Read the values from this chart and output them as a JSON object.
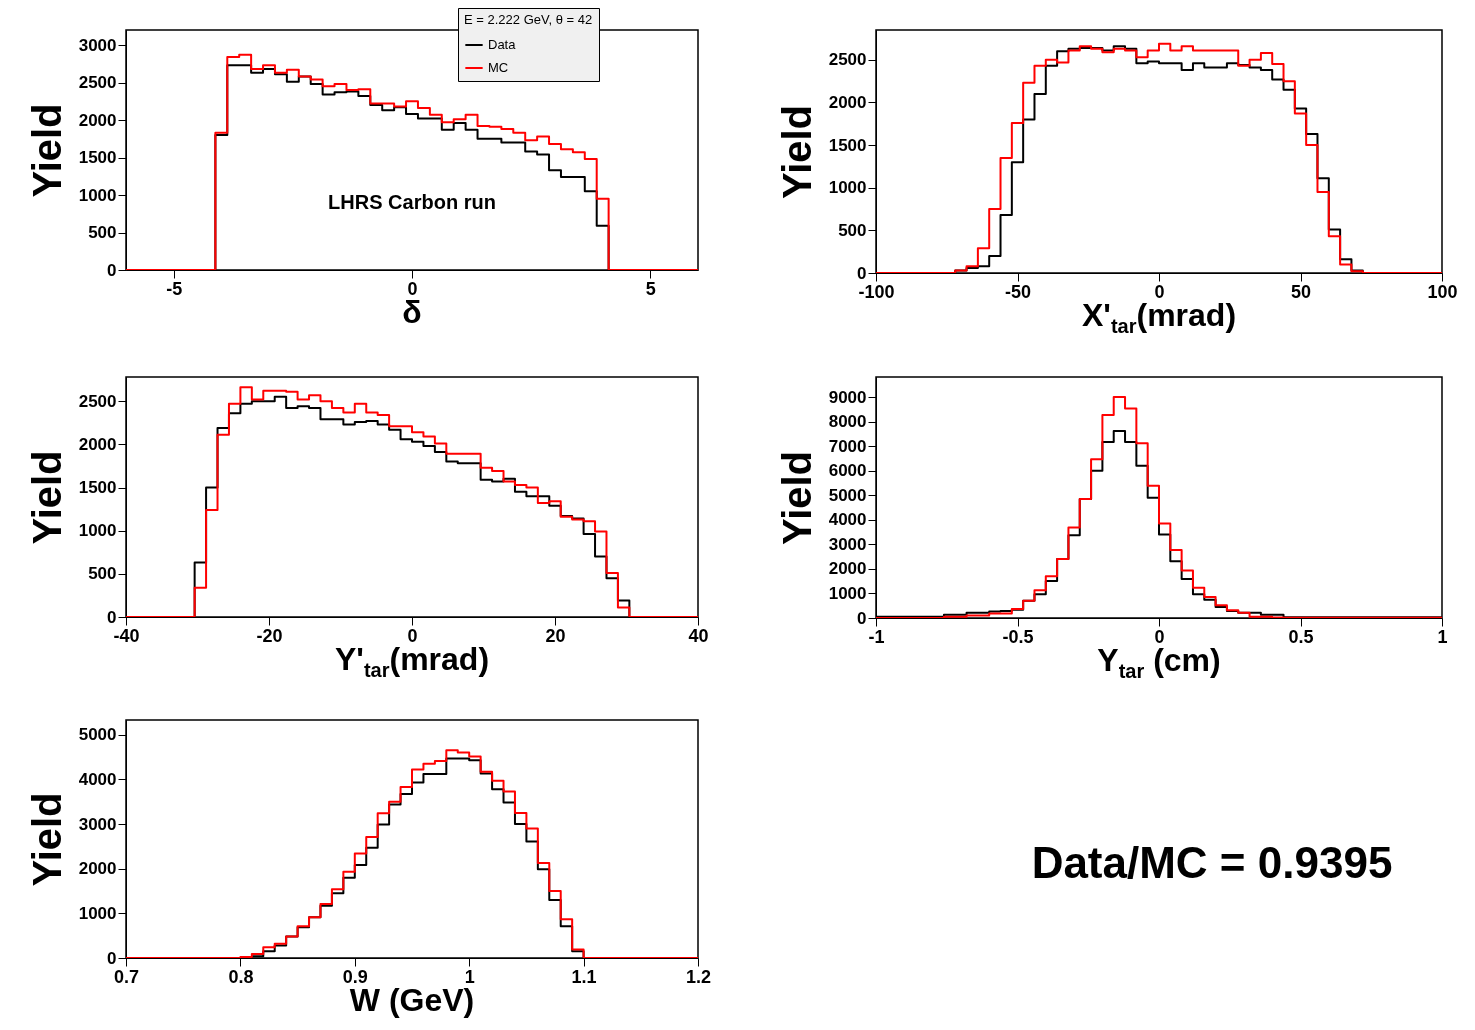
{
  "chart_data": [
    {
      "type": "histogram",
      "xlabel": "δ",
      "ylabel": "Yield",
      "legend": "top right",
      "legend_title": "E = 2.222 GeV, θ = 42",
      "annotations": [
        "LHRS Carbon run"
      ],
      "xlim": [
        -6,
        6
      ],
      "xticks": [
        -5,
        0,
        5
      ],
      "ylim": [
        0,
        3200
      ],
      "yticks": [
        0,
        500,
        1000,
        1500,
        2000,
        2500,
        3000
      ],
      "bins": [
        -6,
        -4.125,
        -3.875,
        -3.625,
        -3.375,
        -3.125,
        -2.875,
        -2.625,
        -2.375,
        -2.125,
        -1.875,
        -1.625,
        -1.375,
        -1.125,
        -0.875,
        -0.625,
        -0.375,
        -0.125,
        0.125,
        0.375,
        0.625,
        0.875,
        1.125,
        1.375,
        1.625,
        1.875,
        2.125,
        2.375,
        2.625,
        2.875,
        3.125,
        3.375,
        3.625,
        3.875,
        4.125,
        6
      ],
      "series": [
        {
          "name": "Data",
          "color": "#000000",
          "values": [
            0,
            1800,
            2730,
            2730,
            2630,
            2680,
            2610,
            2510,
            2580,
            2480,
            2340,
            2370,
            2380,
            2320,
            2200,
            2130,
            2170,
            2080,
            2020,
            2020,
            1870,
            1960,
            1870,
            1750,
            1750,
            1700,
            1700,
            1580,
            1540,
            1330,
            1240,
            1240,
            1050,
            590,
            0
          ]
        },
        {
          "name": "MC",
          "color": "#ff0000",
          "values": [
            0,
            1830,
            2840,
            2870,
            2680,
            2730,
            2630,
            2670,
            2580,
            2540,
            2450,
            2480,
            2400,
            2410,
            2220,
            2220,
            2180,
            2250,
            2160,
            2070,
            1970,
            2010,
            2070,
            1920,
            1910,
            1880,
            1830,
            1730,
            1780,
            1680,
            1610,
            1570,
            1480,
            950,
            0
          ]
        }
      ]
    },
    {
      "type": "histogram",
      "xlabel": "X'$_{tar}$(mrad)",
      "ylabel": "Yield",
      "xlim": [
        -100,
        100
      ],
      "xticks": [
        -100,
        -50,
        0,
        50,
        100
      ],
      "ylim": [
        0,
        2850
      ],
      "yticks": [
        0,
        500,
        1000,
        1500,
        2000,
        2500
      ],
      "bins": [
        -100,
        -72,
        -68,
        -64,
        -60,
        -56,
        -52,
        -48,
        -44,
        -40,
        -36,
        -32,
        -28,
        -24,
        -20,
        -16,
        -12,
        -8,
        -4,
        0,
        4,
        8,
        12,
        16,
        20,
        24,
        28,
        32,
        36,
        40,
        44,
        48,
        52,
        56,
        60,
        64,
        68,
        72,
        100
      ],
      "series": [
        {
          "color": "#000000",
          "values": [
            0,
            30,
            60,
            80,
            200,
            680,
            1300,
            1800,
            2100,
            2430,
            2600,
            2630,
            2640,
            2640,
            2610,
            2660,
            2630,
            2460,
            2480,
            2460,
            2460,
            2380,
            2460,
            2410,
            2410,
            2460,
            2440,
            2410,
            2380,
            2270,
            2150,
            1930,
            1630,
            1110,
            510,
            160,
            30,
            0
          ]
        },
        {
          "color": "#ff0000",
          "values": [
            0,
            30,
            80,
            290,
            750,
            1350,
            1760,
            2230,
            2430,
            2500,
            2470,
            2610,
            2660,
            2630,
            2590,
            2630,
            2610,
            2530,
            2610,
            2690,
            2610,
            2660,
            2610,
            2610,
            2610,
            2610,
            2430,
            2500,
            2580,
            2450,
            2250,
            1870,
            1500,
            950,
            430,
            100,
            20,
            0
          ]
        }
      ]
    },
    {
      "type": "histogram",
      "xlabel": "Y'$_{tar}$(mrad)",
      "ylabel": "Yield",
      "xlim": [
        -40,
        40
      ],
      "xticks": [
        -40,
        -20,
        0,
        20,
        40
      ],
      "ylim": [
        0,
        2780
      ],
      "yticks": [
        0,
        500,
        1000,
        1500,
        2000,
        2500
      ],
      "bins": [
        -40,
        -30.4,
        -28.8,
        -27.2,
        -25.6,
        -24,
        -22.4,
        -20.8,
        -19.2,
        -17.6,
        -16,
        -14.4,
        -12.8,
        -11.2,
        -9.6,
        -8,
        -6.4,
        -4.8,
        -3.2,
        -1.6,
        0,
        1.6,
        3.2,
        4.8,
        6.4,
        8,
        9.6,
        11.2,
        12.8,
        14.4,
        16,
        17.6,
        19.2,
        20.8,
        22.4,
        24,
        25.6,
        27.2,
        28.8,
        30.4,
        40
      ],
      "series": [
        {
          "color": "#000000",
          "values": [
            0,
            630,
            1500,
            2190,
            2360,
            2470,
            2500,
            2500,
            2550,
            2420,
            2440,
            2420,
            2290,
            2290,
            2230,
            2260,
            2270,
            2230,
            2170,
            2060,
            2030,
            1980,
            1910,
            1800,
            1780,
            1780,
            1590,
            1570,
            1600,
            1450,
            1400,
            1400,
            1290,
            1170,
            1140,
            960,
            700,
            450,
            190,
            0
          ]
        },
        {
          "color": "#ff0000",
          "values": [
            0,
            340,
            1240,
            2110,
            2470,
            2660,
            2520,
            2620,
            2620,
            2610,
            2520,
            2570,
            2500,
            2420,
            2370,
            2470,
            2370,
            2340,
            2210,
            2210,
            2140,
            2090,
            2010,
            1890,
            1890,
            1890,
            1730,
            1690,
            1570,
            1530,
            1500,
            1320,
            1340,
            1160,
            1130,
            1110,
            990,
            510,
            110,
            0
          ]
        }
      ]
    },
    {
      "type": "histogram",
      "xlabel": "Y$_{tar}$ (cm)",
      "ylabel": "Yield",
      "xlim": [
        -1,
        1
      ],
      "xticks": [
        -1,
        -0.5,
        0,
        0.5,
        1
      ],
      "ylim": [
        0,
        9820
      ],
      "yticks": [
        0,
        1000,
        2000,
        3000,
        4000,
        5000,
        6000,
        7000,
        8000,
        9000
      ],
      "bins": [
        -1,
        -0.76,
        -0.68,
        -0.6,
        -0.56,
        -0.52,
        -0.48,
        -0.44,
        -0.4,
        -0.36,
        -0.32,
        -0.28,
        -0.24,
        -0.2,
        -0.16,
        -0.12,
        -0.08,
        -0.04,
        0,
        0.04,
        0.08,
        0.12,
        0.16,
        0.2,
        0.24,
        0.28,
        0.32,
        0.36,
        0.4,
        0.44,
        1
      ],
      "series": [
        {
          "color": "#000000",
          "values": [
            50,
            130,
            210,
            260,
            290,
            340,
            700,
            970,
            1510,
            2400,
            3370,
            4850,
            6000,
            7170,
            7620,
            7170,
            6200,
            4900,
            3400,
            2310,
            1590,
            970,
            740,
            450,
            290,
            210,
            210,
            130,
            130,
            30
          ]
        },
        {
          "color": "#ff0000",
          "values": [
            0,
            50,
            100,
            180,
            180,
            370,
            700,
            1130,
            1700,
            2400,
            3690,
            4850,
            6470,
            8270,
            9000,
            8540,
            7120,
            5390,
            3850,
            2770,
            1940,
            1230,
            860,
            520,
            320,
            210,
            50,
            50,
            20,
            10
          ]
        }
      ]
    },
    {
      "type": "histogram",
      "xlabel": "W (GeV)",
      "ylabel": "Yield",
      "xlim": [
        0.7,
        1.2
      ],
      "xticks": [
        0.7,
        0.8,
        0.9,
        1,
        1.1,
        1.2
      ],
      "ylim": [
        0,
        5330
      ],
      "yticks": [
        0,
        1000,
        2000,
        3000,
        4000,
        5000
      ],
      "bins": [
        0.7,
        0.8,
        0.81,
        0.82,
        0.83,
        0.84,
        0.85,
        0.86,
        0.87,
        0.88,
        0.89,
        0.9,
        0.91,
        0.92,
        0.93,
        0.94,
        0.95,
        0.96,
        0.97,
        0.98,
        0.99,
        1,
        1.01,
        1.02,
        1.03,
        1.04,
        1.05,
        1.06,
        1.07,
        1.08,
        1.09,
        1.1,
        1.2
      ],
      "series": [
        {
          "color": "#000000",
          "values": [
            0,
            0,
            40,
            150,
            280,
            480,
            690,
            910,
            1170,
            1450,
            1800,
            2080,
            2470,
            2990,
            3440,
            3670,
            3930,
            4120,
            4120,
            4470,
            4470,
            4430,
            4130,
            3780,
            3480,
            3000,
            2610,
            1990,
            1300,
            710,
            150,
            0
          ]
        },
        {
          "color": "#ff0000",
          "values": [
            0,
            20,
            90,
            240,
            320,
            480,
            710,
            910,
            1210,
            1540,
            1930,
            2340,
            2710,
            3240,
            3500,
            3830,
            4220,
            4350,
            4410,
            4650,
            4600,
            4510,
            4170,
            3970,
            3730,
            3250,
            2900,
            2130,
            1500,
            870,
            190,
            0
          ]
        }
      ]
    },
    {
      "type": "other",
      "annotations": [
        "Data/MC = 0.9395"
      ]
    }
  ]
}
